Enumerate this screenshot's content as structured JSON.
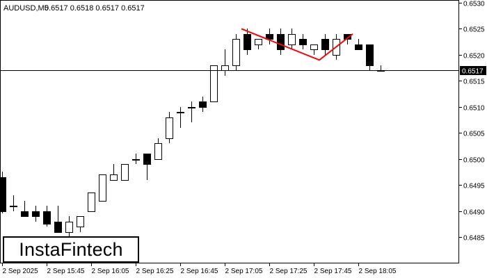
{
  "header": {
    "symbol_label": "AUDUSD,M5",
    "ohlc_label": "0.6517 0.6518 0.6517 0.6517"
  },
  "brand": {
    "logo_text": "InstaFintech"
  },
  "current_price": {
    "label": "0.6517",
    "value": 0.6517
  },
  "colors": {
    "background": "#ffffff",
    "bull_fill": "#ffffff",
    "bear_fill": "#000000",
    "pattern_line": "#ff0000",
    "price_label_bg": "#000000",
    "price_label_text": "#ffffff"
  },
  "chart_data": {
    "type": "candlestick",
    "symbol": "AUDUSD",
    "timeframe": "M5",
    "ylim": [
      0.6479,
      0.653
    ],
    "yticks": [
      0.6485,
      0.649,
      0.6495,
      0.65,
      0.6505,
      0.651,
      0.6515,
      0.652,
      0.6525,
      0.653
    ],
    "ytick_labels": [
      "0.6485",
      "0.6490",
      "0.6495",
      "0.6500",
      "0.6505",
      "0.6510",
      "0.6515",
      "0.6520",
      "0.6525",
      "0.6530"
    ],
    "xtick_labels": [
      {
        "candle": 0,
        "label": "2 Sep 2025"
      },
      {
        "candle": 4,
        "label": "2 Sep 15:45"
      },
      {
        "candle": 8,
        "label": "2 Sep 16:05"
      },
      {
        "candle": 12,
        "label": "2 Sep 16:25"
      },
      {
        "candle": 16,
        "label": "2 Sep 16:45"
      },
      {
        "candle": 20,
        "label": "2 Sep 17:05"
      },
      {
        "candle": 24,
        "label": "2 Sep 17:25"
      },
      {
        "candle": 28,
        "label": "2 Sep 17:45"
      },
      {
        "candle": 32,
        "label": "2 Sep 18:05"
      }
    ],
    "candles": [
      {
        "o": 0.64965,
        "h": 0.64975,
        "l": 0.64895,
        "c": 0.649
      },
      {
        "o": 0.6491,
        "h": 0.6493,
        "l": 0.649,
        "c": 0.6491
      },
      {
        "o": 0.649,
        "h": 0.6492,
        "l": 0.6489,
        "c": 0.6489
      },
      {
        "o": 0.649,
        "h": 0.6491,
        "l": 0.6488,
        "c": 0.6489
      },
      {
        "o": 0.649,
        "h": 0.6491,
        "l": 0.6487,
        "c": 0.64875
      },
      {
        "o": 0.6488,
        "h": 0.6491,
        "l": 0.6486,
        "c": 0.6486
      },
      {
        "o": 0.6486,
        "h": 0.6489,
        "l": 0.6485,
        "c": 0.6488
      },
      {
        "o": 0.6487,
        "h": 0.6489,
        "l": 0.6486,
        "c": 0.6489
      },
      {
        "o": 0.649,
        "h": 0.64935,
        "l": 0.649,
        "c": 0.64935
      },
      {
        "o": 0.6492,
        "h": 0.6497,
        "l": 0.6492,
        "c": 0.6497
      },
      {
        "o": 0.6496,
        "h": 0.6499,
        "l": 0.6496,
        "c": 0.6497
      },
      {
        "o": 0.6496,
        "h": 0.6499,
        "l": 0.6496,
        "c": 0.6499
      },
      {
        "o": 0.65,
        "h": 0.6501,
        "l": 0.6499,
        "c": 0.65
      },
      {
        "o": 0.6501,
        "h": 0.6501,
        "l": 0.6496,
        "c": 0.6499
      },
      {
        "o": 0.65,
        "h": 0.6504,
        "l": 0.65,
        "c": 0.6503
      },
      {
        "o": 0.6504,
        "h": 0.6509,
        "l": 0.6503,
        "c": 0.6508
      },
      {
        "o": 0.6509,
        "h": 0.651,
        "l": 0.6506,
        "c": 0.6509
      },
      {
        "o": 0.651,
        "h": 0.6511,
        "l": 0.6507,
        "c": 0.651
      },
      {
        "o": 0.6511,
        "h": 0.6512,
        "l": 0.6509,
        "c": 0.651
      },
      {
        "o": 0.6511,
        "h": 0.6518,
        "l": 0.6511,
        "c": 0.6518
      },
      {
        "o": 0.6517,
        "h": 0.6521,
        "l": 0.6516,
        "c": 0.6518
      },
      {
        "o": 0.6518,
        "h": 0.6524,
        "l": 0.6517,
        "c": 0.6523
      },
      {
        "o": 0.6524,
        "h": 0.6525,
        "l": 0.652,
        "c": 0.6521
      },
      {
        "o": 0.6522,
        "h": 0.6523,
        "l": 0.6521,
        "c": 0.6523
      },
      {
        "o": 0.6524,
        "h": 0.6525,
        "l": 0.6522,
        "c": 0.6523
      },
      {
        "o": 0.6524,
        "h": 0.6525,
        "l": 0.652,
        "c": 0.6521
      },
      {
        "o": 0.6522,
        "h": 0.6525,
        "l": 0.6521,
        "c": 0.6524
      },
      {
        "o": 0.6523,
        "h": 0.6524,
        "l": 0.6521,
        "c": 0.6522
      },
      {
        "o": 0.6521,
        "h": 0.6522,
        "l": 0.652,
        "c": 0.6522
      },
      {
        "o": 0.6523,
        "h": 0.6524,
        "l": 0.652,
        "c": 0.6521
      },
      {
        "o": 0.652,
        "h": 0.6524,
        "l": 0.6519,
        "c": 0.6523
      },
      {
        "o": 0.6524,
        "h": 0.6524,
        "l": 0.6522,
        "c": 0.6523
      },
      {
        "o": 0.6522,
        "h": 0.6523,
        "l": 0.6521,
        "c": 0.6521
      },
      {
        "o": 0.6522,
        "h": 0.6522,
        "l": 0.6517,
        "c": 0.6518
      },
      {
        "o": 0.6517,
        "h": 0.6518,
        "l": 0.6517,
        "c": 0.6517
      }
    ],
    "pattern": {
      "type": "double-top",
      "points": [
        {
          "candle": 21.5,
          "price": 0.6525
        },
        {
          "candle": 28.5,
          "price": 0.6519
        },
        {
          "candle": 31.5,
          "price": 0.6524
        }
      ]
    }
  }
}
